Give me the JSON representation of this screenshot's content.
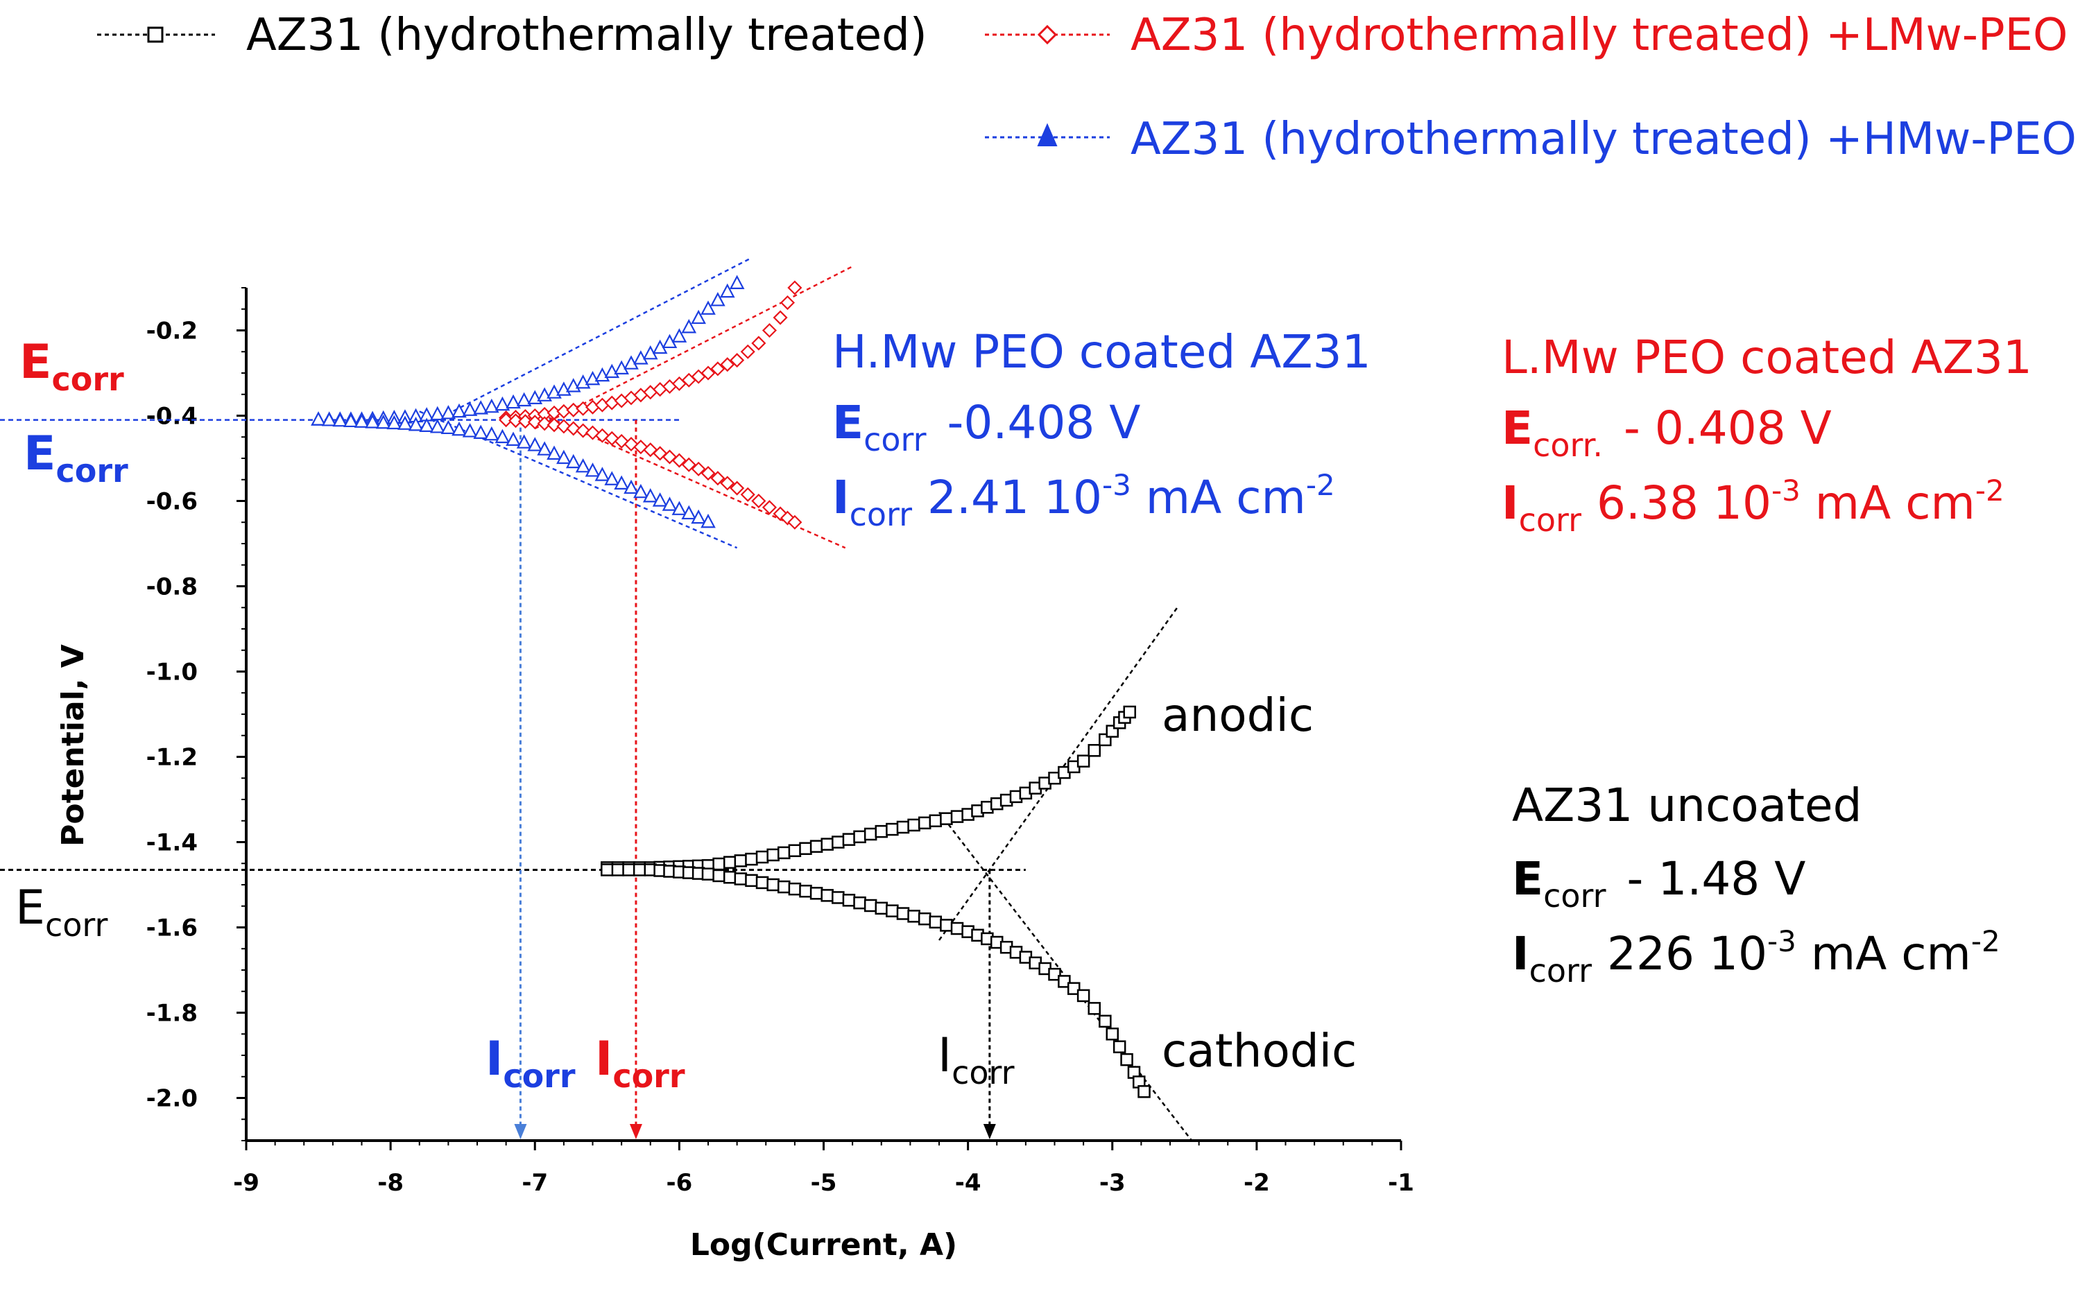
{
  "chart_data": {
    "type": "scatter",
    "xlabel": "Log(Current, A)",
    "ylabel": "Potential, V",
    "xlim": [
      -9,
      -1
    ],
    "ylim": [
      -2.1,
      -0.1
    ],
    "x_ticks": [
      "-9",
      "-8",
      "-7",
      "-6",
      "-5",
      "-4",
      "-3",
      "-2",
      "-1"
    ],
    "y_ticks": [
      "-0.2",
      "-0.4",
      "-0.6",
      "-0.8",
      "-1.0",
      "-1.2",
      "-1.4",
      "-1.6",
      "-1.8",
      "-2.0"
    ],
    "grid": false,
    "legend_position": "top",
    "series": [
      {
        "name": "AZ31 (hydrothermally treated)",
        "color": "#000000",
        "marker": "square",
        "ecorr": -1.465,
        "anodic": [
          [
            -6.5,
            -1.46
          ],
          [
            -6.2,
            -1.46
          ],
          [
            -5.8,
            -1.455
          ],
          [
            -5.5,
            -1.44
          ],
          [
            -5.2,
            -1.42
          ],
          [
            -4.9,
            -1.4
          ],
          [
            -4.6,
            -1.375
          ],
          [
            -4.3,
            -1.355
          ],
          [
            -4.0,
            -1.335
          ],
          [
            -3.8,
            -1.31
          ],
          [
            -3.6,
            -1.285
          ],
          [
            -3.4,
            -1.25
          ],
          [
            -3.2,
            -1.21
          ],
          [
            -3.05,
            -1.16
          ],
          [
            -2.95,
            -1.12
          ],
          [
            -2.88,
            -1.095
          ]
        ],
        "cathodic": [
          [
            -6.5,
            -1.465
          ],
          [
            -6.2,
            -1.465
          ],
          [
            -5.8,
            -1.475
          ],
          [
            -5.5,
            -1.49
          ],
          [
            -5.2,
            -1.51
          ],
          [
            -4.9,
            -1.53
          ],
          [
            -4.6,
            -1.555
          ],
          [
            -4.3,
            -1.58
          ],
          [
            -4.0,
            -1.61
          ],
          [
            -3.8,
            -1.635
          ],
          [
            -3.6,
            -1.67
          ],
          [
            -3.4,
            -1.71
          ],
          [
            -3.2,
            -1.76
          ],
          [
            -3.05,
            -1.82
          ],
          [
            -2.95,
            -1.88
          ],
          [
            -2.85,
            -1.94
          ],
          [
            -2.78,
            -1.985
          ]
        ]
      },
      {
        "name": "AZ31 (hydrothermally treated) +LMw-PEO",
        "color": "#e8141a",
        "marker": "diamond",
        "ecorr": -0.41,
        "anodic": [
          [
            -7.2,
            -0.405
          ],
          [
            -7.0,
            -0.4
          ],
          [
            -6.8,
            -0.39
          ],
          [
            -6.6,
            -0.38
          ],
          [
            -6.4,
            -0.365
          ],
          [
            -6.2,
            -0.345
          ],
          [
            -6.0,
            -0.325
          ],
          [
            -5.8,
            -0.3
          ],
          [
            -5.6,
            -0.27
          ],
          [
            -5.45,
            -0.23
          ],
          [
            -5.3,
            -0.17
          ],
          [
            -5.2,
            -0.1
          ]
        ],
        "cathodic": [
          [
            -7.2,
            -0.41
          ],
          [
            -7.0,
            -0.415
          ],
          [
            -6.8,
            -0.425
          ],
          [
            -6.6,
            -0.44
          ],
          [
            -6.4,
            -0.46
          ],
          [
            -6.2,
            -0.48
          ],
          [
            -6.0,
            -0.505
          ],
          [
            -5.8,
            -0.535
          ],
          [
            -5.6,
            -0.57
          ],
          [
            -5.45,
            -0.6
          ],
          [
            -5.3,
            -0.63
          ],
          [
            -5.2,
            -0.65
          ]
        ]
      },
      {
        "name": "AZ31 (hydrothermally treated) +HMw-PEO",
        "color": "#1c3fe0",
        "marker": "triangle",
        "ecorr": -0.41,
        "anodic": [
          [
            -8.5,
            -0.41
          ],
          [
            -8.2,
            -0.41
          ],
          [
            -7.9,
            -0.405
          ],
          [
            -7.6,
            -0.395
          ],
          [
            -7.3,
            -0.38
          ],
          [
            -7.0,
            -0.36
          ],
          [
            -6.8,
            -0.34
          ],
          [
            -6.6,
            -0.315
          ],
          [
            -6.4,
            -0.29
          ],
          [
            -6.2,
            -0.255
          ],
          [
            -6.0,
            -0.215
          ],
          [
            -5.8,
            -0.15
          ],
          [
            -5.6,
            -0.09
          ]
        ],
        "cathodic": [
          [
            -8.5,
            -0.41
          ],
          [
            -8.2,
            -0.415
          ],
          [
            -7.9,
            -0.42
          ],
          [
            -7.6,
            -0.43
          ],
          [
            -7.3,
            -0.445
          ],
          [
            -7.0,
            -0.47
          ],
          [
            -6.8,
            -0.5
          ],
          [
            -6.6,
            -0.53
          ],
          [
            -6.4,
            -0.56
          ],
          [
            -6.2,
            -0.59
          ],
          [
            -6.0,
            -0.62
          ],
          [
            -5.8,
            -0.65
          ]
        ]
      }
    ],
    "icorr_x": {
      "blue": -7.1,
      "red": -6.3,
      "black": -3.85
    }
  },
  "legend": [
    {
      "label": "AZ31 (hydrothermally treated)",
      "color": "#000000",
      "marker": "square"
    },
    {
      "label": "AZ31 (hydrothermally treated) +LMw-PEO",
      "color": "#e8141a",
      "marker": "diamond"
    },
    {
      "label": "AZ31 (hydrothermally treated) +HMw-PEO",
      "color": "#1c3fe0",
      "marker": "triangle"
    }
  ],
  "labels": {
    "ecorr_main": "E",
    "ecorr_sub": "corr",
    "icorr_main": "I",
    "icorr_sub": "corr",
    "anodic": "anodic",
    "cathodic": "cathodic"
  },
  "notes": {
    "hmw": {
      "title": "H.Mw PEO coated AZ31",
      "e_main": "E",
      "e_sub": "corr",
      "e_val": "-0.408 V",
      "i_main": "I",
      "i_sub": "corr",
      "i_val": "2.41  10",
      "i_exp": "-3",
      "i_unit": " mA cm",
      "i_unit_exp": "-2",
      "color": "#1c3fe0"
    },
    "lmw": {
      "title": "L.Mw PEO coated AZ31",
      "e_main": "E",
      "e_sub": "corr.",
      "e_val": "- 0.408 V",
      "i_main": "I",
      "i_sub": "corr",
      "i_val": "6.38  10",
      "i_exp": "-3",
      "i_unit": " mA cm",
      "i_unit_exp": "-2",
      "color": "#e8141a"
    },
    "uncoated": {
      "title": "AZ31 uncoated",
      "e_main": "E",
      "e_sub": "corr",
      "e_val": "- 1.48 V",
      "i_main": "I",
      "i_sub": "corr",
      "i_val": "226  10",
      "i_exp": "-3",
      "i_unit": " mA cm",
      "i_unit_exp": "-2",
      "color": "#000000"
    }
  }
}
